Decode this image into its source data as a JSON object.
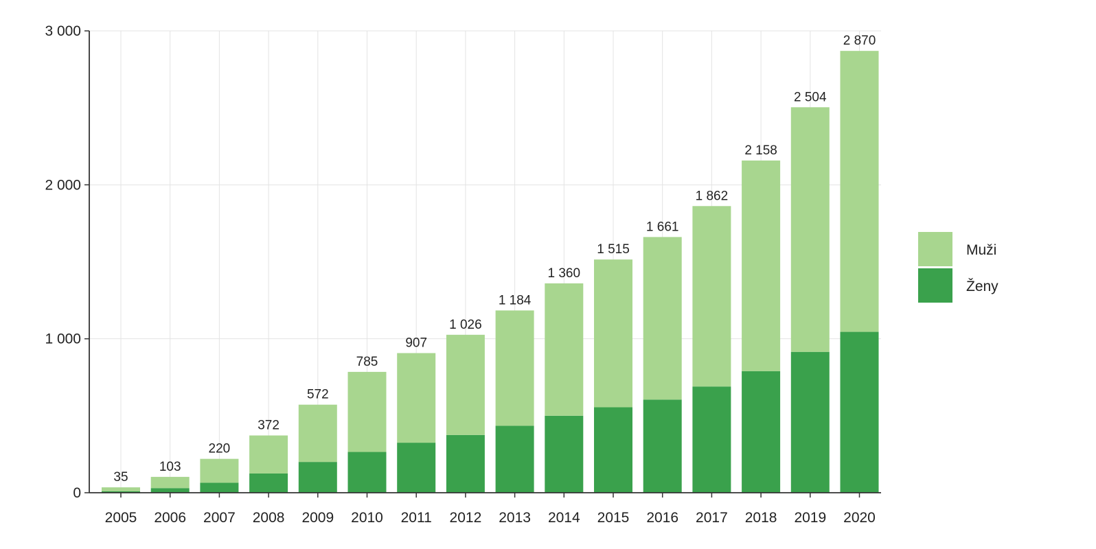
{
  "chart_data": {
    "type": "bar",
    "stacked": true,
    "categories": [
      "2005",
      "2006",
      "2007",
      "2008",
      "2009",
      "2010",
      "2011",
      "2012",
      "2013",
      "2014",
      "2015",
      "2016",
      "2017",
      "2018",
      "2019",
      "2020"
    ],
    "series": [
      {
        "name": "Ženy",
        "color": "#3aa14c",
        "values": [
          10,
          30,
          65,
          125,
          200,
          265,
          325,
          375,
          435,
          500,
          555,
          605,
          690,
          790,
          915,
          1045
        ]
      },
      {
        "name": "Muži",
        "color": "#a8d68f",
        "values": [
          25,
          73,
          155,
          247,
          372,
          520,
          582,
          651,
          749,
          860,
          960,
          1056,
          1172,
          1368,
          1589,
          1825
        ]
      }
    ],
    "total_labels": [
      "35",
      "103",
      "220",
      "372",
      "572",
      "785",
      "907",
      "1 026",
      "1 184",
      "1 360",
      "1 515",
      "1 661",
      "1 862",
      "2 158",
      "2 504",
      "2 870"
    ],
    "y_ticks": [
      0,
      1000,
      2000,
      3000
    ],
    "y_tick_labels": [
      "0",
      "1 000",
      "2 000",
      "3 000"
    ],
    "ylim": [
      0,
      3000
    ],
    "grid": true,
    "legend_placement": "right",
    "legend": [
      {
        "name": "Muži",
        "color": "#a8d68f"
      },
      {
        "name": "Ženy",
        "color": "#3aa14c"
      }
    ]
  }
}
